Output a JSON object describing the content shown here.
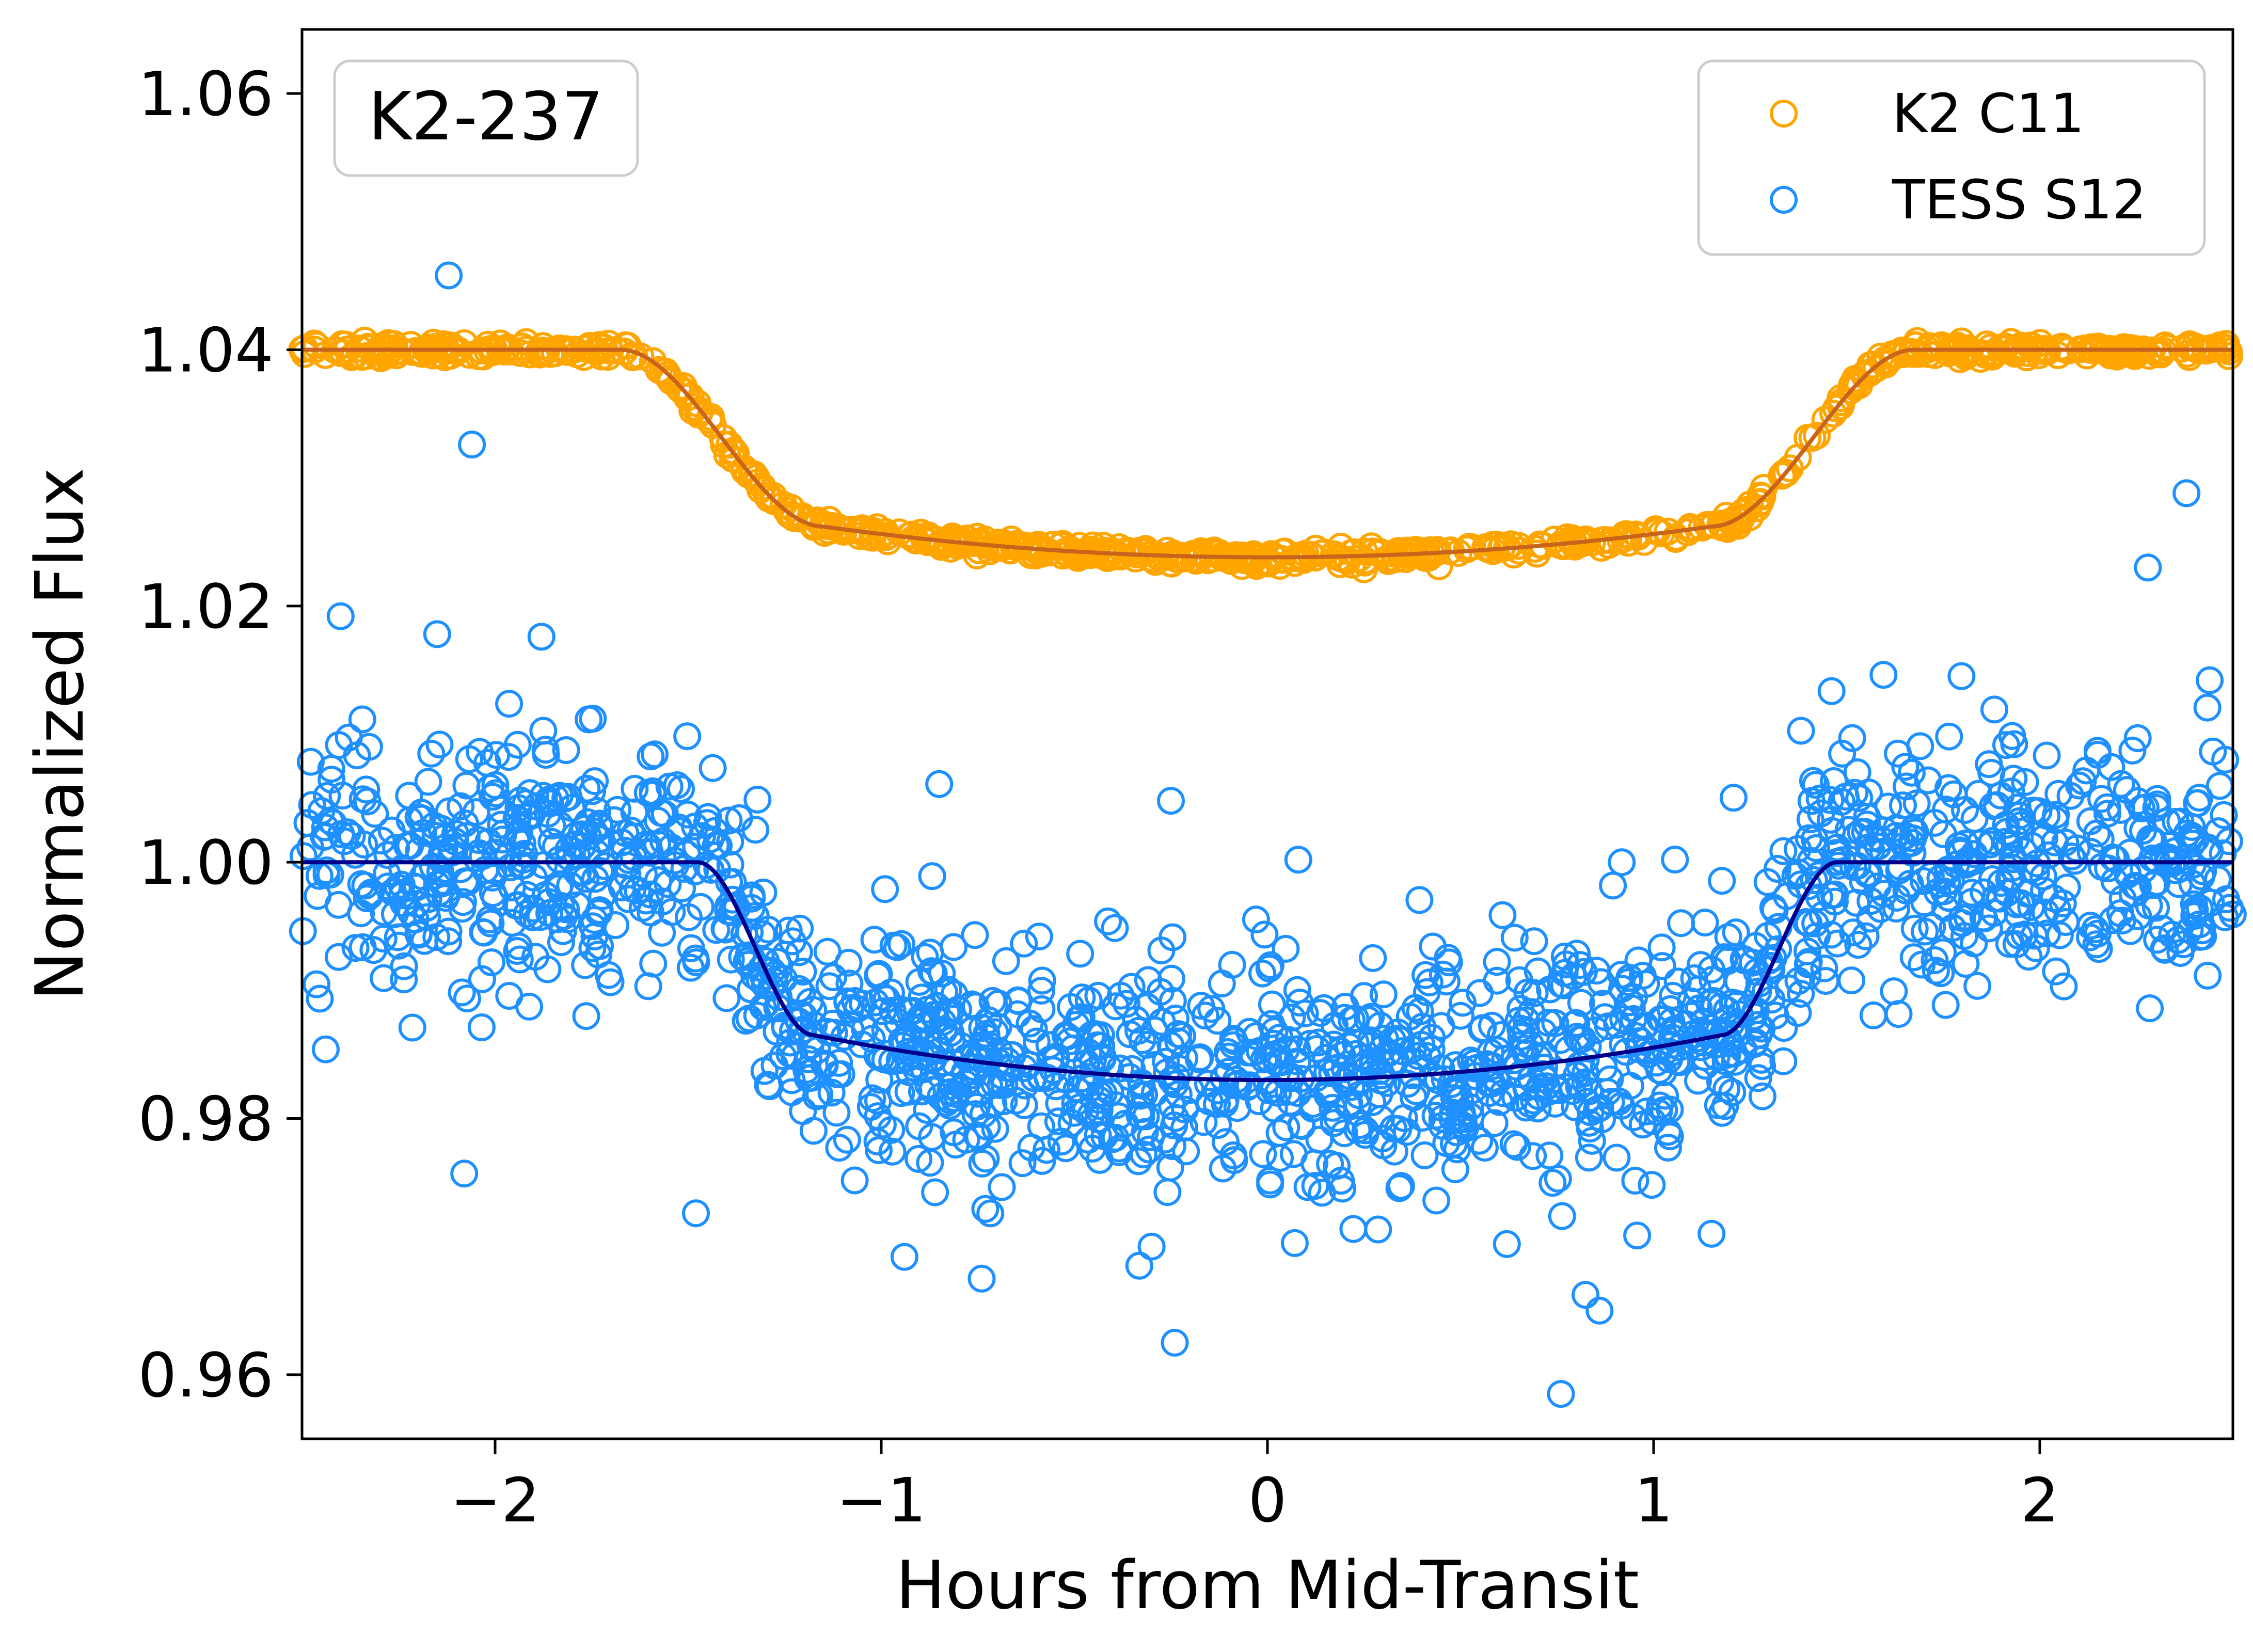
{
  "chart_data": {
    "type": "scatter",
    "annotation": "K2-237",
    "xlabel": "Hours from Mid-Transit",
    "ylabel": "Normalized Flux",
    "xlim": [
      -2.5,
      2.5
    ],
    "ylim": [
      0.955,
      1.065
    ],
    "x_ticks": [
      -2,
      -1,
      0,
      1,
      2
    ],
    "x_tick_labels": [
      "−2",
      "−1",
      "0",
      "1",
      "2"
    ],
    "y_ticks": [
      0.96,
      0.98,
      1.0,
      1.02,
      1.04,
      1.06
    ],
    "y_tick_labels": [
      "0.96",
      "0.98",
      "1.00",
      "1.02",
      "1.04",
      "1.06"
    ],
    "grid": false,
    "legend_position": "top-right",
    "series": [
      {
        "name": "K2 C11",
        "marker": "open-circle",
        "color": "#FFA500",
        "n_points": 700,
        "scatter_sigma": 0.0003,
        "offset": 0.04,
        "model": {
          "color": "#C8651B",
          "baseline": 1.04,
          "t14_hours": 3.35,
          "t23_hours": 2.3,
          "center_flux": 1.0238,
          "edge_flux": 1.0262
        }
      },
      {
        "name": "TESS S12",
        "marker": "open-circle",
        "color": "#1E90FF",
        "n_points": 1700,
        "scatter_sigma": 0.0048,
        "offset": 0.0,
        "model": {
          "color": "#00008B",
          "baseline": 1.0,
          "t14_hours": 2.95,
          "t23_hours": 2.35,
          "center_flux": 0.983,
          "edge_flux": 0.9865
        }
      }
    ],
    "outliers_tess": [
      {
        "x": -2.12,
        "y": 1.0458
      },
      {
        "x": -2.06,
        "y": 1.0326
      },
      {
        "x": -2.4,
        "y": 1.0192
      },
      {
        "x": -2.08,
        "y": 0.9757
      },
      {
        "x": -1.48,
        "y": 0.9726
      },
      {
        "x": -0.94,
        "y": 0.9692
      },
      {
        "x": -0.74,
        "y": 0.9675
      },
      {
        "x": -0.24,
        "y": 0.9625
      },
      {
        "x": 0.76,
        "y": 0.9585
      },
      {
        "x": 0.86,
        "y": 0.965
      },
      {
        "x": 2.28,
        "y": 1.023
      },
      {
        "x": 2.38,
        "y": 1.0288
      },
      {
        "x": -0.85,
        "y": 1.0061
      },
      {
        "x": -2.15,
        "y": 1.0178
      },
      {
        "x": -1.88,
        "y": 1.0176
      },
      {
        "x": 1.15,
        "y": 0.971
      },
      {
        "x": 0.62,
        "y": 0.9702
      },
      {
        "x": -0.3,
        "y": 0.97
      },
      {
        "x": 0.08,
        "y": 1.0002
      },
      {
        "x": -0.25,
        "y": 1.0048
      },
      {
        "x": 2.44,
        "y": 1.0142
      }
    ]
  }
}
